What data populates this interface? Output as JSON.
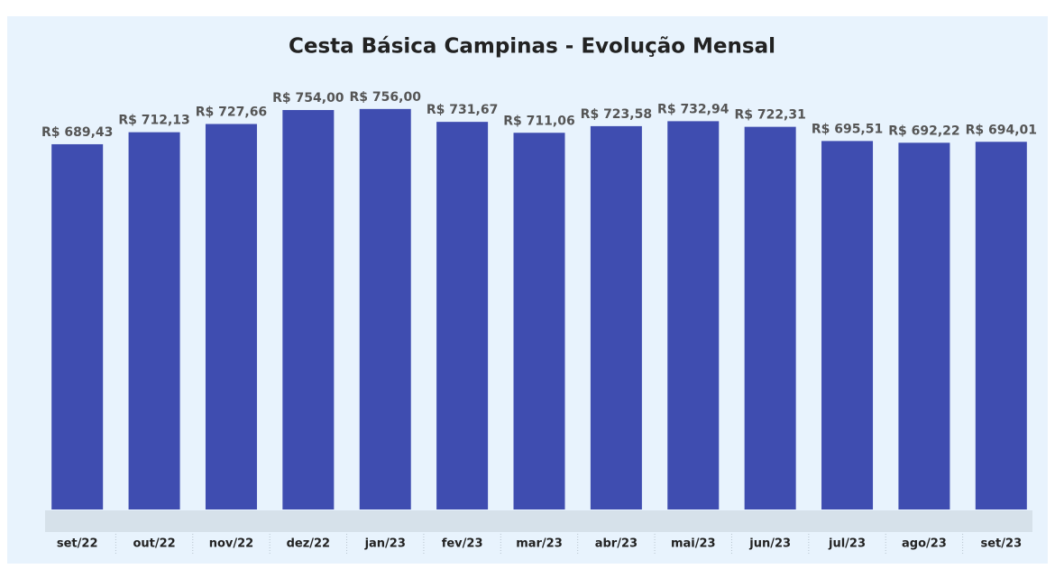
{
  "chart_data": {
    "type": "bar",
    "title": "Cesta Básica Campinas - Evolução Mensal",
    "categories": [
      "set/22",
      "out/22",
      "nov/22",
      "dez/22",
      "jan/23",
      "fev/23",
      "mar/23",
      "abr/23",
      "mai/23",
      "jun/23",
      "jul/23",
      "ago/23",
      "set/23"
    ],
    "values": [
      689.43,
      712.13,
      727.66,
      754.0,
      756.0,
      731.67,
      711.06,
      723.58,
      732.94,
      722.31,
      695.51,
      692.22,
      694.01
    ],
    "value_labels": [
      "R$ 689,43",
      "R$ 712,13",
      "R$ 727,66",
      "R$ 754,00",
      "R$ 756,00",
      "R$ 731,67",
      "R$ 711,06",
      "R$ 723,58",
      "R$ 732,94",
      "R$ 722,31",
      "R$ 695,51",
      "R$ 692,22",
      "R$ 694,01"
    ],
    "color": "#3f4db0",
    "ylim": [
      0,
      800
    ]
  }
}
